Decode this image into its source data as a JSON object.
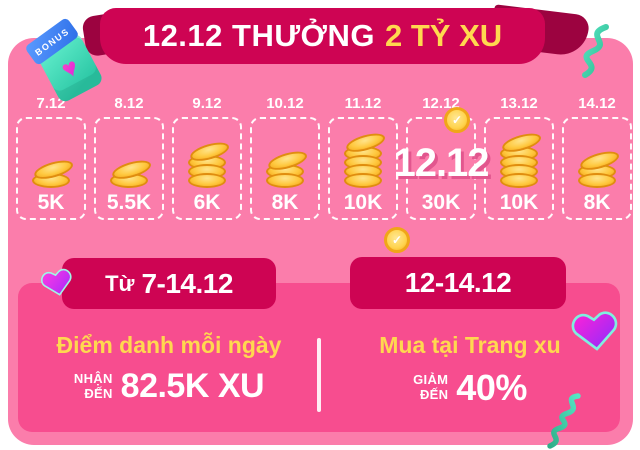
{
  "colors": {
    "background_pink": "#FB7DAB",
    "panel_pink": "#F74D8F",
    "crimson": "#CE0453",
    "crimson_dark": "#9C0340",
    "yellow": "#FFD84F",
    "gold": "#F5A31C",
    "teal": "#3FD9B6"
  },
  "icons": {
    "coin_check": "✓",
    "heart": "♥"
  },
  "header": {
    "bonus_tag": "BONUS",
    "title_white": "12.12 THƯỞNG",
    "title_yellow": "2 TỶ XU"
  },
  "calendar": {
    "days": [
      {
        "date": "7.12",
        "reward": "5K",
        "coins": 2,
        "special": false
      },
      {
        "date": "8.12",
        "reward": "5.5K",
        "coins": 2,
        "special": false
      },
      {
        "date": "9.12",
        "reward": "6K",
        "coins": 4,
        "special": false
      },
      {
        "date": "10.12",
        "reward": "8K",
        "coins": 3,
        "special": false
      },
      {
        "date": "11.12",
        "reward": "10K",
        "coins": 5,
        "special": false
      },
      {
        "date": "12.12",
        "reward": "30K",
        "coins": 0,
        "special": true,
        "overlay": "12.12"
      },
      {
        "date": "13.12",
        "reward": "10K",
        "coins": 5,
        "special": false
      },
      {
        "date": "14.12",
        "reward": "8K",
        "coins": 3,
        "special": false
      }
    ]
  },
  "checkin_promo": {
    "period_prefix": "Từ",
    "period": "7-14.12",
    "headline": "Điểm danh mỗi ngày",
    "prefix_line1": "NHẬN",
    "prefix_line2": "ĐẾN",
    "amount": "82.5K XU"
  },
  "coin_page_promo": {
    "period": "12-14.12",
    "headline": "Mua tại Trang xu",
    "prefix_line1": "GIẢM",
    "prefix_line2": "ĐẾN",
    "amount": "40%"
  }
}
